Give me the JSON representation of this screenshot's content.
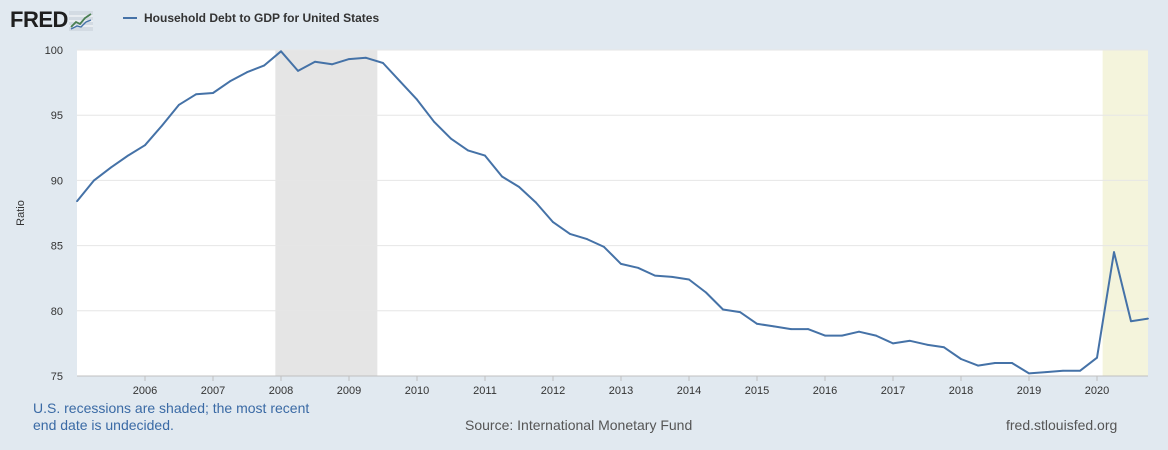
{
  "header": {
    "logo_text": "FRED"
  },
  "chart_data": {
    "type": "line",
    "title": "Household Debt to GDP for United States",
    "ylabel": "Ratio",
    "xlabel": "",
    "xlim": [
      2005.0,
      2020.75
    ],
    "ylim": [
      75,
      100
    ],
    "yticks": [
      75,
      80,
      85,
      90,
      95,
      100
    ],
    "xticks": [
      "2006",
      "2007",
      "2008",
      "2009",
      "2010",
      "2011",
      "2012",
      "2013",
      "2014",
      "2015",
      "2016",
      "2017",
      "2018",
      "2019",
      "2020"
    ],
    "grid": true,
    "line_color": "#4572a7",
    "recession_color": "#e5e5e5",
    "undecided_recession_color": "#f4f4dc",
    "recessions": [
      {
        "start": 2007.917,
        "end": 2009.417
      },
      {
        "start": 2020.083,
        "end": 2020.75,
        "undecided": true
      }
    ],
    "series": [
      {
        "name": "Household Debt to GDP for United States",
        "x": [
          2005.0,
          2005.25,
          2005.5,
          2005.75,
          2006.0,
          2006.25,
          2006.5,
          2006.75,
          2007.0,
          2007.25,
          2007.5,
          2007.75,
          2008.0,
          2008.25,
          2008.5,
          2008.75,
          2009.0,
          2009.25,
          2009.5,
          2009.75,
          2010.0,
          2010.25,
          2010.5,
          2010.75,
          2011.0,
          2011.25,
          2011.5,
          2011.75,
          2012.0,
          2012.25,
          2012.5,
          2012.75,
          2013.0,
          2013.25,
          2013.5,
          2013.75,
          2014.0,
          2014.25,
          2014.5,
          2014.75,
          2015.0,
          2015.25,
          2015.5,
          2015.75,
          2016.0,
          2016.25,
          2016.5,
          2016.75,
          2017.0,
          2017.25,
          2017.5,
          2017.75,
          2018.0,
          2018.25,
          2018.5,
          2018.75,
          2019.0,
          2019.25,
          2019.5,
          2019.75,
          2020.0,
          2020.25,
          2020.5,
          2020.75
        ],
        "y": [
          88.4,
          90.0,
          91.0,
          91.9,
          92.7,
          94.2,
          95.8,
          96.6,
          96.7,
          97.6,
          98.3,
          98.8,
          99.9,
          98.4,
          99.1,
          98.9,
          99.3,
          99.4,
          99.0,
          97.6,
          96.2,
          94.5,
          93.2,
          92.3,
          91.9,
          90.3,
          89.5,
          88.3,
          86.8,
          85.9,
          85.5,
          84.9,
          83.6,
          83.3,
          82.7,
          82.6,
          82.4,
          81.4,
          80.1,
          79.9,
          79.0,
          78.8,
          78.6,
          78.6,
          78.1,
          78.1,
          78.4,
          78.1,
          77.5,
          77.7,
          77.4,
          77.2,
          76.3,
          75.8,
          76.0,
          76.0,
          75.2,
          75.3,
          75.4,
          75.4,
          76.4,
          84.5,
          79.2,
          79.4
        ]
      }
    ]
  },
  "footer": {
    "note_line1": "U.S. recessions are shaded; the most recent",
    "note_line2": "end date is undecided.",
    "source": "Source: International Monetary Fund",
    "site": "fred.stlouisfed.org"
  }
}
